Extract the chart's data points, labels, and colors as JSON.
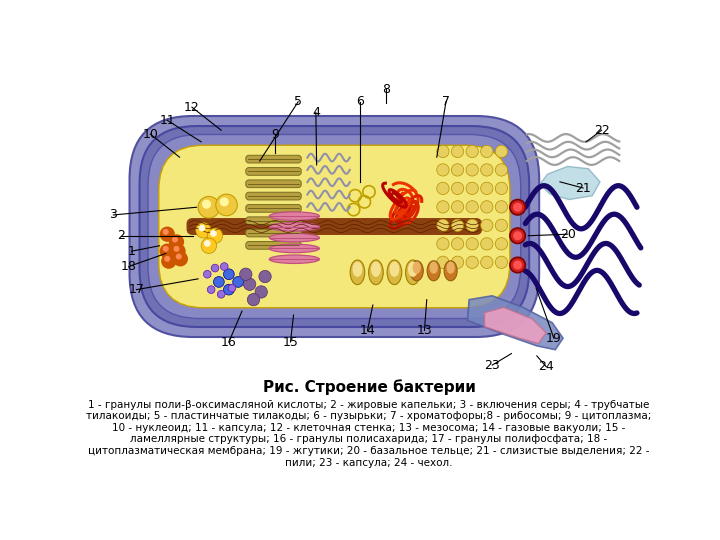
{
  "title": "Рис. Строение бактерии",
  "cap1": "1 - гранулы поли-β-оксимасляной кислоты; 2 - жировые капельки; 3 - включения серы; 4 - трубчатые",
  "cap2": "тилакоиды; 5 - пластинчатые тилакоды; 6 - пузырьки; 7 - хроматофоры;8 - рибосомы; 9 - цитоплазма;",
  "cap3": "10 - нуклеоид; 11 - капсула; 12 - клеточная стенка; 13 - мезосома; 14 - газовые вакуоли; 15 -",
  "cap4": "ламеллярные структуры; 16 - гранулы полисахарида; 17 - гранулы полифосфата; 18 -",
  "cap5": "цитоплазматическая мембрана; 19 - жгутики; 20 - базальное тельце; 21 - слизистые выделения; 22 -",
  "cap6": "пили; 23 - капсула; 24 - чехол.",
  "bg": "#ffffff",
  "capsule_color": "#9090c8",
  "wall_color": "#7070b0",
  "membrane_color": "#8080c0",
  "cytoplasm_color": "#f5e87a",
  "nucleoid_color": "#8b4010",
  "flagella_color": "#18086a"
}
